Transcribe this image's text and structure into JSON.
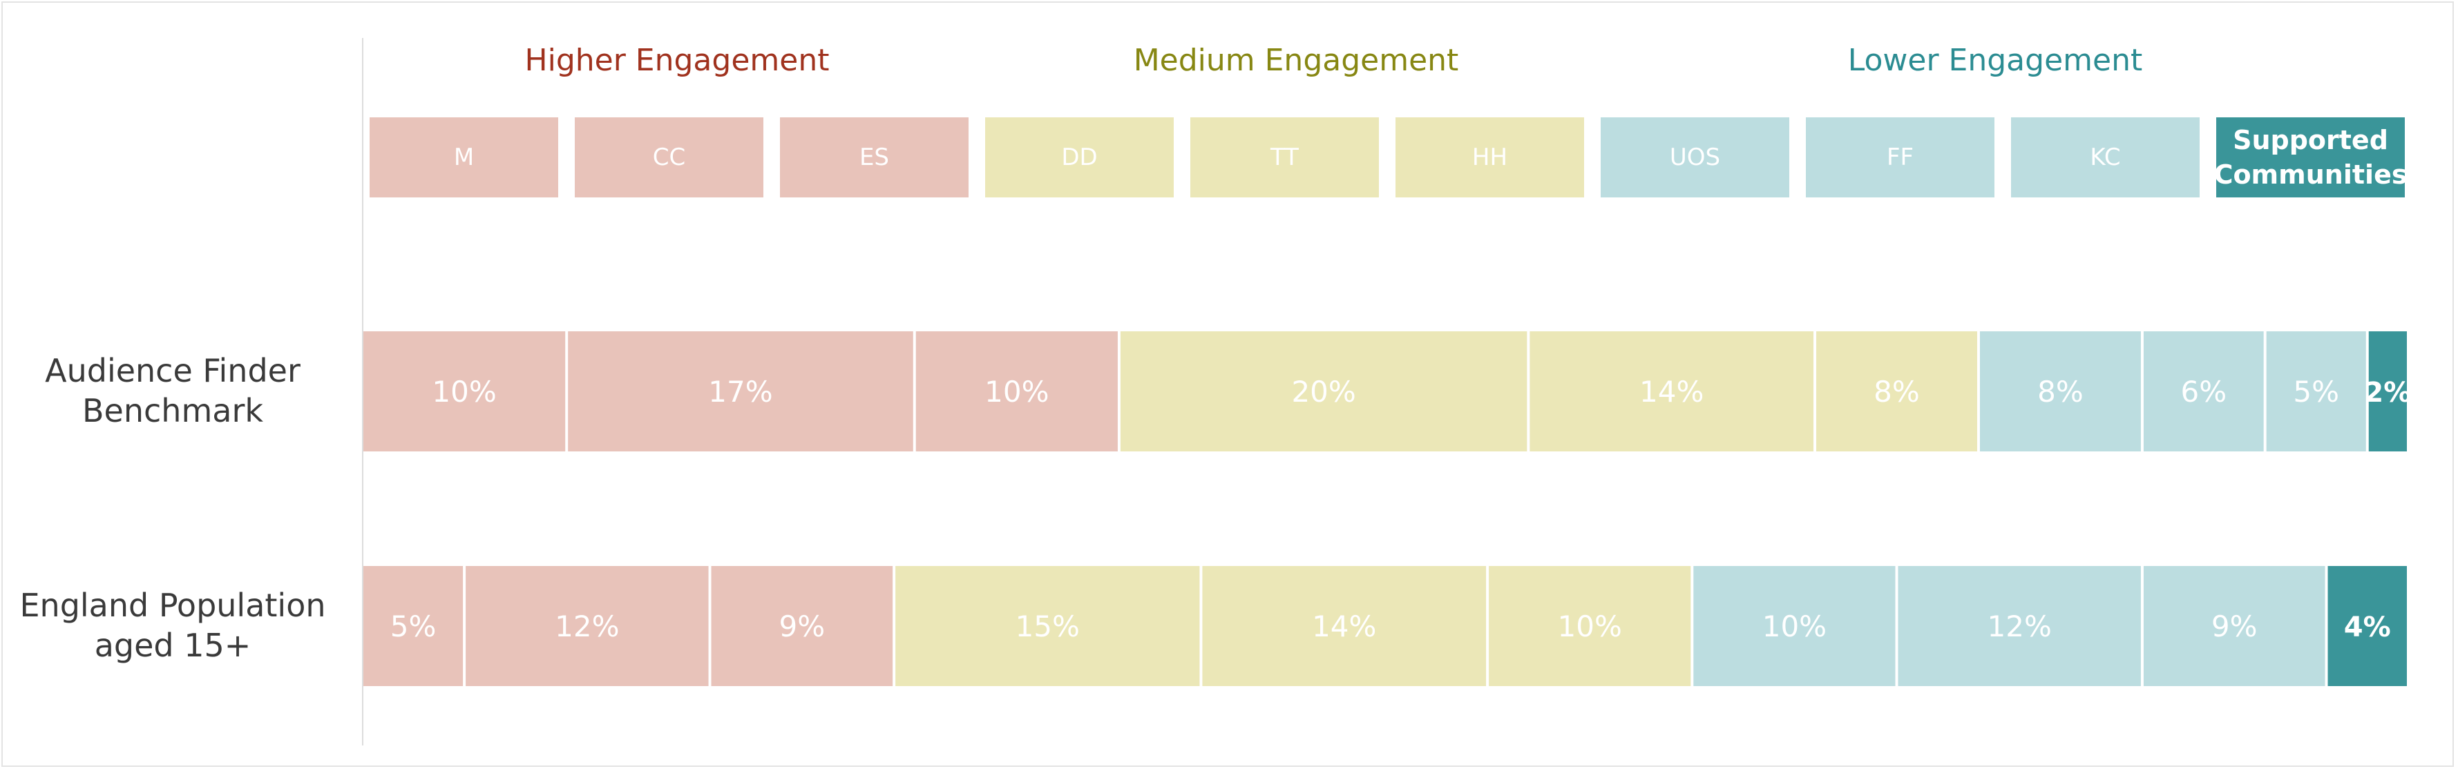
{
  "groups": [
    {
      "label": "Higher Engagement",
      "color": "#a0321e"
    },
    {
      "label": "Medium Engagement",
      "color": "#878713"
    },
    {
      "label": "Lower Engagement",
      "color": "#2b8c92"
    }
  ],
  "colors": {
    "higher": "#e8c3ba",
    "medium": "#ebe7b7",
    "lower": "#bcdde0",
    "supported": "#3a9599"
  },
  "segments": [
    {
      "code": "M",
      "group": "higher"
    },
    {
      "code": "CC",
      "group": "higher"
    },
    {
      "code": "ES",
      "group": "higher"
    },
    {
      "code": "DD",
      "group": "medium"
    },
    {
      "code": "TT",
      "group": "medium"
    },
    {
      "code": "HH",
      "group": "medium"
    },
    {
      "code": "UOS",
      "group": "lower"
    },
    {
      "code": "FF",
      "group": "lower"
    },
    {
      "code": "KC",
      "group": "lower"
    },
    {
      "code": "Supported Communities",
      "group": "supported"
    }
  ],
  "chart_data": {
    "type": "bar",
    "orientation": "horizontal",
    "stacked": true,
    "categories": [
      "Audience Finder Benchmark",
      "England Population aged 15+"
    ],
    "series": [
      {
        "name": "M",
        "values": [
          10,
          5
        ]
      },
      {
        "name": "CC",
        "values": [
          17,
          12
        ]
      },
      {
        "name": "ES",
        "values": [
          10,
          9
        ]
      },
      {
        "name": "DD",
        "values": [
          20,
          15
        ]
      },
      {
        "name": "TT",
        "values": [
          14,
          14
        ]
      },
      {
        "name": "HH",
        "values": [
          8,
          10
        ]
      },
      {
        "name": "UOS",
        "values": [
          8,
          10
        ]
      },
      {
        "name": "FF",
        "values": [
          6,
          12
        ]
      },
      {
        "name": "KC",
        "values": [
          5,
          9
        ]
      },
      {
        "name": "Supported Communities",
        "values": [
          2,
          4
        ]
      }
    ],
    "data_labels": [
      [
        "10%",
        "17%",
        "10%",
        "20%",
        "14%",
        "8%",
        "8%",
        "6%",
        "5%",
        "2%"
      ],
      [
        "5%",
        "12%",
        "9%",
        "15%",
        "14%",
        "10%",
        "10%",
        "12%",
        "9%",
        "4%"
      ]
    ],
    "grid": false,
    "legend_position": "top"
  }
}
